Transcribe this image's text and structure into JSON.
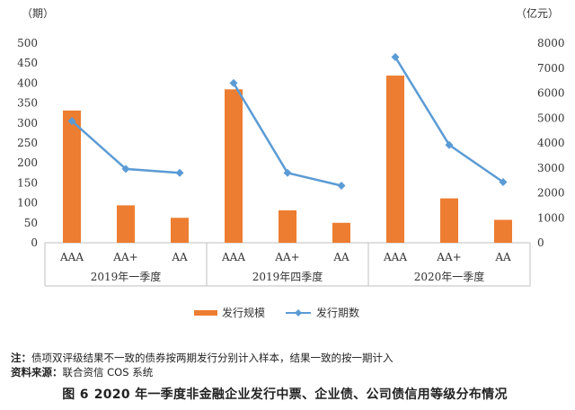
{
  "chart_data": {
    "type": "bar+line",
    "left_axis_unit": "（期）",
    "right_axis_unit": "（亿元）",
    "left_ylim": [
      0,
      500
    ],
    "left_ticks": [
      "0",
      "50",
      "100",
      "150",
      "200",
      "250",
      "300",
      "350",
      "400",
      "450",
      "500"
    ],
    "right_ylim": [
      0,
      8000
    ],
    "right_ticks": [
      "0",
      "1000",
      "2000",
      "3000",
      "4000",
      "5000",
      "6000",
      "7000",
      "8000"
    ],
    "groups": [
      {
        "label": "2019年一季度",
        "categories": [
          "AAA",
          "AA+",
          "AA"
        ]
      },
      {
        "label": "2019年四季度",
        "categories": [
          "AAA",
          "AA+",
          "AA"
        ]
      },
      {
        "label": "2020年一季度",
        "categories": [
          "AAA",
          "AA+",
          "AA"
        ]
      }
    ],
    "series": [
      {
        "name": "发行规模",
        "type": "bar",
        "axis": "right",
        "color": "#ED7D31",
        "values": [
          [
            5300,
            1500,
            1000
          ],
          [
            6150,
            1300,
            800
          ],
          [
            6700,
            1780,
            920
          ]
        ]
      },
      {
        "name": "发行期数",
        "type": "line",
        "axis": "left",
        "color": "#5B9BD5",
        "values": [
          [
            305,
            185,
            175
          ],
          [
            400,
            175,
            143
          ],
          [
            465,
            245,
            152
          ]
        ]
      }
    ],
    "legend_position": "bottom"
  },
  "notes": {
    "note_label": "注：",
    "note_text": "债项双评级结果不一致的债券按两期发行分别计入样本，结果一致的按一期计入",
    "source_label": "资料来源：",
    "source_text": "联合资信 COS 系统"
  },
  "caption": {
    "number": "图 6",
    "title": "2020 年一季度非金融企业发行中票、企业债、公司债信用等级分布情况"
  }
}
